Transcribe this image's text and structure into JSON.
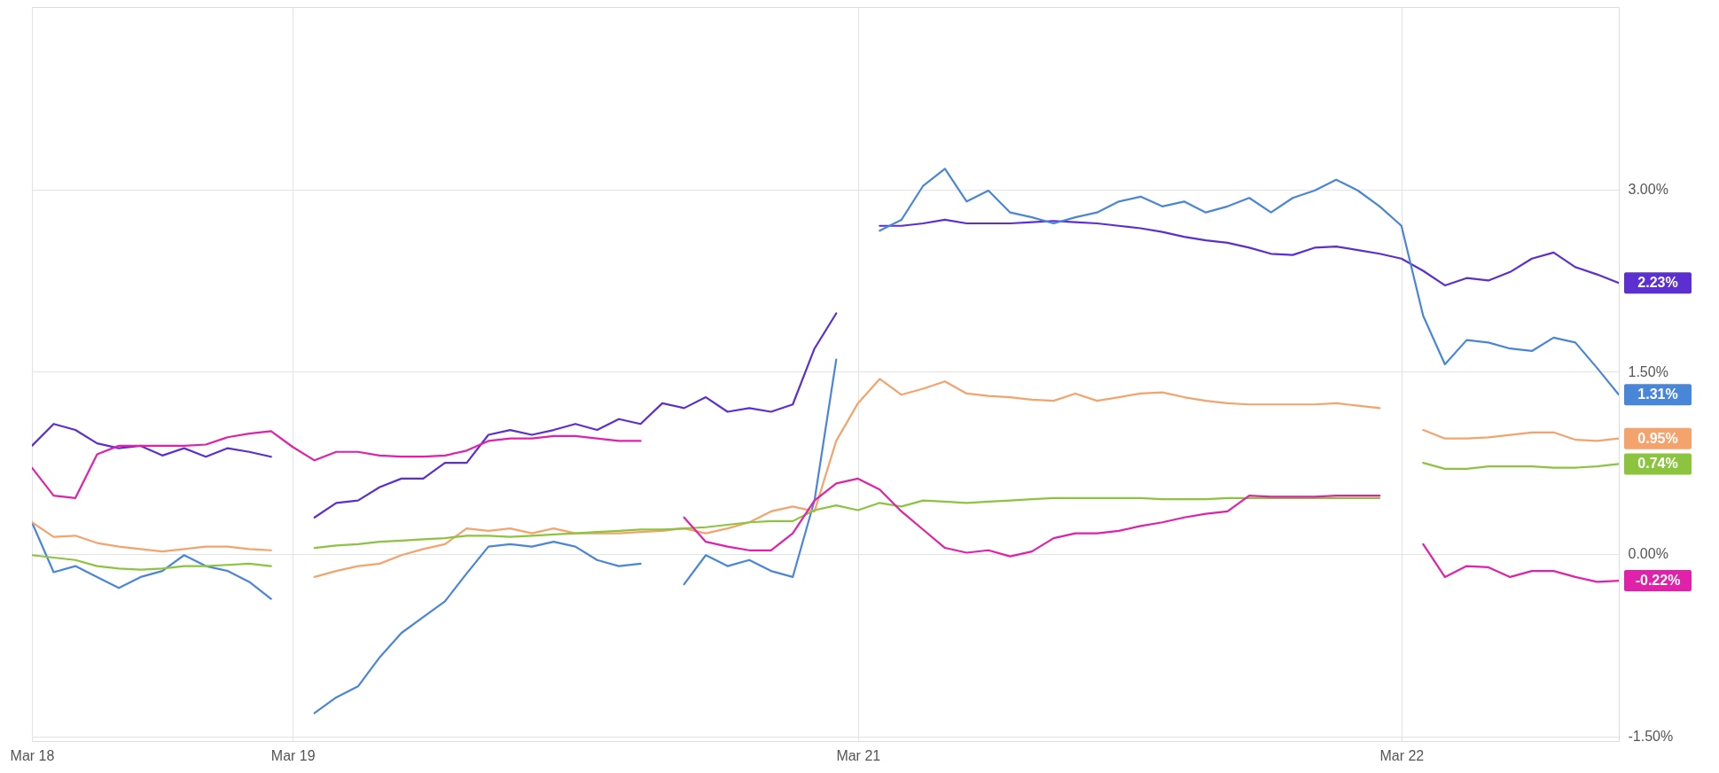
{
  "chart_data": {
    "type": "line",
    "ylim": [
      -1.54,
      4.5
    ],
    "categories": [
      "Mar 18",
      null,
      null,
      null,
      null,
      null,
      null,
      null,
      null,
      null,
      null,
      null,
      "Mar 19",
      null,
      null,
      null,
      null,
      null,
      null,
      null,
      null,
      null,
      null,
      null,
      null,
      null,
      null,
      null,
      null,
      null,
      null,
      null,
      null,
      null,
      null,
      null,
      null,
      null,
      "Mar 21",
      null,
      null,
      null,
      null,
      null,
      null,
      null,
      null,
      null,
      null,
      null,
      null,
      null,
      null,
      null,
      null,
      null,
      null,
      null,
      null,
      null,
      null,
      null,
      null,
      "Mar 22",
      null,
      null,
      null,
      null,
      null,
      null,
      null,
      null,
      null,
      null
    ],
    "yticks": [
      {
        "value": -1.5,
        "label": "-1.50%"
      },
      {
        "value": 0,
        "label": "0.00%"
      },
      {
        "value": 1.5,
        "label": "1.50%"
      },
      {
        "value": 3,
        "label": "3.00%"
      }
    ],
    "grid": true,
    "line_style": "solid",
    "marker": "none",
    "series": [
      {
        "color": "#5b2fd0",
        "values": [
          0.89,
          1.07,
          1.02,
          0.91,
          0.87,
          0.89,
          0.81,
          0.87,
          0.8,
          0.87,
          0.84,
          0.8,
          null,
          0.3,
          0.42,
          0.44,
          0.55,
          0.62,
          0.62,
          0.75,
          0.75,
          0.98,
          1.02,
          0.98,
          1.02,
          1.07,
          1.02,
          1.11,
          1.07,
          1.24,
          1.2,
          1.29,
          1.17,
          1.2,
          1.17,
          1.23,
          1.69,
          1.98,
          null,
          2.7,
          2.7,
          2.72,
          2.75,
          2.72,
          2.72,
          2.72,
          2.73,
          2.74,
          2.73,
          2.72,
          2.7,
          2.68,
          2.65,
          2.61,
          2.58,
          2.56,
          2.52,
          2.47,
          2.46,
          2.52,
          2.53,
          2.5,
          2.47,
          2.43,
          2.33,
          2.21,
          2.27,
          2.25,
          2.32,
          2.43,
          2.48,
          2.36,
          2.3,
          2.23
        ],
        "value_labels": [
          null,
          null,
          null,
          null,
          null,
          null,
          null,
          null,
          null,
          null,
          null,
          null,
          null,
          null,
          null,
          null,
          null,
          null,
          null,
          null,
          null,
          null,
          null,
          null,
          null,
          null,
          null,
          null,
          null,
          null,
          null,
          null,
          null,
          null,
          null,
          null,
          null,
          null,
          null,
          null,
          null,
          null,
          null,
          null,
          null,
          null,
          null,
          null,
          null,
          null,
          null,
          null,
          null,
          null,
          null,
          null,
          null,
          null,
          null,
          null,
          null,
          null,
          null,
          null,
          null,
          null,
          null,
          null,
          null,
          null,
          null,
          null,
          null,
          "2.23%"
        ]
      },
      {
        "color": "#4a86d8",
        "values": [
          0.26,
          -0.15,
          -0.1,
          -0.19,
          -0.28,
          -0.19,
          -0.14,
          -0.01,
          -0.1,
          -0.14,
          -0.23,
          -0.37,
          null,
          -1.31,
          -1.18,
          -1.09,
          -0.85,
          -0.65,
          -0.52,
          -0.39,
          -0.16,
          0.06,
          0.08,
          0.06,
          0.1,
          0.06,
          -0.05,
          -0.1,
          -0.08,
          null,
          -0.25,
          -0.01,
          -0.1,
          -0.05,
          -0.14,
          -0.19,
          0.44,
          1.6,
          null,
          2.66,
          2.75,
          3.03,
          3.17,
          2.9,
          2.99,
          2.81,
          2.77,
          2.72,
          2.77,
          2.81,
          2.9,
          2.94,
          2.86,
          2.9,
          2.81,
          2.86,
          2.93,
          2.81,
          2.93,
          2.99,
          3.08,
          2.99,
          2.86,
          2.7,
          1.96,
          1.56,
          1.76,
          1.74,
          1.69,
          1.67,
          1.78,
          1.74,
          1.53,
          1.31
        ],
        "value_labels": [
          null,
          null,
          null,
          null,
          null,
          null,
          null,
          null,
          null,
          null,
          null,
          null,
          null,
          null,
          null,
          null,
          null,
          null,
          null,
          null,
          null,
          null,
          null,
          null,
          null,
          null,
          null,
          null,
          null,
          null,
          null,
          null,
          null,
          null,
          null,
          null,
          null,
          null,
          null,
          null,
          null,
          null,
          null,
          null,
          null,
          null,
          null,
          null,
          null,
          null,
          null,
          null,
          null,
          null,
          null,
          null,
          null,
          null,
          null,
          null,
          null,
          null,
          null,
          null,
          null,
          null,
          null,
          null,
          null,
          null,
          null,
          null,
          null,
          "1.31%"
        ]
      },
      {
        "color": "#f5a36c",
        "values": [
          0.26,
          0.14,
          0.15,
          0.09,
          0.06,
          0.04,
          0.02,
          0.04,
          0.06,
          0.06,
          0.04,
          0.03,
          null,
          -0.19,
          -0.14,
          -0.1,
          -0.08,
          -0.01,
          0.04,
          0.08,
          0.21,
          0.19,
          0.21,
          0.17,
          0.21,
          0.17,
          0.17,
          0.17,
          0.18,
          0.19,
          0.21,
          0.17,
          0.21,
          0.26,
          0.35,
          0.39,
          0.35,
          0.93,
          1.24,
          1.44,
          1.31,
          1.36,
          1.42,
          1.32,
          1.3,
          1.29,
          1.27,
          1.26,
          1.32,
          1.26,
          1.29,
          1.32,
          1.33,
          1.29,
          1.26,
          1.24,
          1.23,
          1.23,
          1.23,
          1.23,
          1.24,
          1.22,
          1.2,
          null,
          1.02,
          0.95,
          0.95,
          0.96,
          0.98,
          1.0,
          1.0,
          0.94,
          0.93,
          0.95
        ],
        "value_labels": [
          null,
          null,
          null,
          null,
          null,
          null,
          null,
          null,
          null,
          null,
          null,
          null,
          null,
          null,
          null,
          null,
          null,
          null,
          null,
          null,
          null,
          null,
          null,
          null,
          null,
          null,
          null,
          null,
          null,
          null,
          null,
          null,
          null,
          null,
          null,
          null,
          null,
          null,
          null,
          null,
          null,
          null,
          null,
          null,
          null,
          null,
          null,
          null,
          null,
          null,
          null,
          null,
          null,
          null,
          null,
          null,
          null,
          null,
          null,
          null,
          null,
          null,
          null,
          null,
          null,
          null,
          null,
          null,
          null,
          null,
          null,
          null,
          null,
          "0.95%"
        ]
      },
      {
        "color": "#8cc43f",
        "values": [
          -0.01,
          -0.03,
          -0.05,
          -0.1,
          -0.12,
          -0.13,
          -0.12,
          -0.1,
          -0.1,
          -0.09,
          -0.08,
          -0.1,
          null,
          0.05,
          0.07,
          0.08,
          0.1,
          0.11,
          0.12,
          0.13,
          0.15,
          0.15,
          0.14,
          0.15,
          0.16,
          0.17,
          0.18,
          0.19,
          0.2,
          0.2,
          0.21,
          0.22,
          0.24,
          0.26,
          0.27,
          0.27,
          0.36,
          0.4,
          0.36,
          0.42,
          0.39,
          0.44,
          0.43,
          0.42,
          0.43,
          0.44,
          0.45,
          0.46,
          0.46,
          0.46,
          0.46,
          0.46,
          0.45,
          0.45,
          0.45,
          0.46,
          0.46,
          0.46,
          0.46,
          0.46,
          0.46,
          0.46,
          0.46,
          null,
          0.75,
          0.7,
          0.7,
          0.72,
          0.72,
          0.72,
          0.71,
          0.71,
          0.72,
          0.74
        ],
        "value_labels": [
          null,
          null,
          null,
          null,
          null,
          null,
          null,
          null,
          null,
          null,
          null,
          null,
          null,
          null,
          null,
          null,
          null,
          null,
          null,
          null,
          null,
          null,
          null,
          null,
          null,
          null,
          null,
          null,
          null,
          null,
          null,
          null,
          null,
          null,
          null,
          null,
          null,
          null,
          null,
          null,
          null,
          null,
          null,
          null,
          null,
          null,
          null,
          null,
          null,
          null,
          null,
          null,
          null,
          null,
          null,
          null,
          null,
          null,
          null,
          null,
          null,
          null,
          null,
          null,
          null,
          null,
          null,
          null,
          null,
          null,
          null,
          null,
          null,
          "0.74%"
        ]
      },
      {
        "color": "#e021a9",
        "values": [
          0.71,
          0.48,
          0.46,
          0.82,
          0.89,
          0.89,
          0.89,
          0.89,
          0.9,
          0.96,
          0.99,
          1.01,
          0.88,
          0.77,
          0.84,
          0.84,
          0.81,
          0.8,
          0.8,
          0.81,
          0.85,
          0.93,
          0.95,
          0.95,
          0.97,
          0.97,
          0.95,
          0.93,
          0.93,
          null,
          0.3,
          0.1,
          0.06,
          0.03,
          0.03,
          0.17,
          0.44,
          0.58,
          0.62,
          0.53,
          0.35,
          0.2,
          0.05,
          0.01,
          0.03,
          -0.02,
          0.02,
          0.13,
          0.17,
          0.17,
          0.19,
          0.23,
          0.26,
          0.3,
          0.33,
          0.35,
          0.48,
          0.47,
          0.47,
          0.47,
          0.48,
          0.48,
          0.48,
          null,
          0.08,
          -0.19,
          -0.1,
          -0.11,
          -0.19,
          -0.14,
          -0.14,
          -0.19,
          -0.23,
          -0.22
        ],
        "value_labels": [
          null,
          null,
          null,
          null,
          null,
          null,
          null,
          null,
          null,
          null,
          null,
          null,
          null,
          null,
          null,
          null,
          null,
          null,
          null,
          null,
          null,
          null,
          null,
          null,
          null,
          null,
          null,
          null,
          null,
          null,
          null,
          null,
          null,
          null,
          null,
          null,
          null,
          null,
          null,
          null,
          null,
          null,
          null,
          null,
          null,
          null,
          null,
          null,
          null,
          null,
          null,
          null,
          null,
          null,
          null,
          null,
          null,
          null,
          null,
          null,
          null,
          null,
          null,
          null,
          null,
          null,
          null,
          null,
          null,
          null,
          null,
          null,
          null,
          "-0.22%"
        ]
      }
    ]
  }
}
